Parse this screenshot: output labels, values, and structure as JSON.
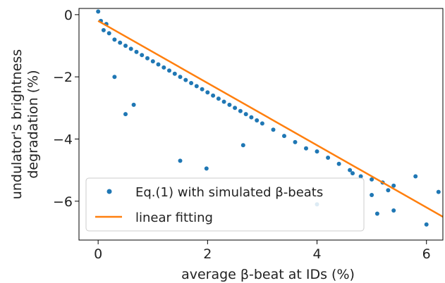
{
  "chart_data": {
    "type": "scatter",
    "xlabel": "average β-beat at IDs (%)",
    "ylabel": [
      "undulator's brightness",
      "degradation (%)"
    ],
    "xlim": [
      -0.35,
      6.3
    ],
    "ylim": [
      -7.25,
      0.2
    ],
    "x_ticks": [
      "0",
      "2",
      "4",
      "6"
    ],
    "y_ticks": [
      "0",
      "−2",
      "−4",
      "−6"
    ],
    "x_tick_values": [
      0,
      2,
      4,
      6
    ],
    "y_tick_values": [
      0,
      -2,
      -4,
      -6
    ],
    "grid": false,
    "legend_position": "lower-left",
    "series": [
      {
        "name": "Eq.(1) with simulated β-beats",
        "kind": "scatter",
        "color": "#1f77b4",
        "x": [
          0.0,
          0.05,
          0.1,
          0.15,
          0.2,
          0.3,
          0.4,
          0.5,
          0.6,
          0.7,
          0.8,
          0.9,
          1.0,
          1.1,
          1.2,
          1.3,
          1.4,
          1.5,
          1.6,
          1.7,
          1.8,
          1.9,
          2.0,
          2.1,
          2.2,
          2.3,
          2.4,
          2.5,
          2.6,
          2.7,
          2.8,
          2.9,
          3.0,
          3.2,
          3.4,
          3.6,
          3.8,
          4.0,
          4.2,
          4.4,
          4.6,
          4.8,
          5.0,
          5.2,
          5.4,
          0.3,
          0.65,
          0.5,
          1.5,
          1.98,
          2.65,
          4.0,
          4.65,
          5.0,
          5.1,
          5.4,
          5.8,
          6.0,
          6.22,
          5.3
        ],
        "y": [
          0.1,
          -0.2,
          -0.5,
          -0.3,
          -0.6,
          -0.8,
          -0.9,
          -1.0,
          -1.1,
          -1.2,
          -1.3,
          -1.4,
          -1.5,
          -1.6,
          -1.7,
          -1.8,
          -1.9,
          -2.0,
          -2.1,
          -2.2,
          -2.3,
          -2.4,
          -2.5,
          -2.6,
          -2.7,
          -2.8,
          -2.9,
          -3.0,
          -3.1,
          -3.2,
          -3.3,
          -3.4,
          -3.5,
          -3.7,
          -3.9,
          -4.1,
          -4.3,
          -4.4,
          -4.6,
          -4.8,
          -5.0,
          -5.2,
          -5.3,
          -5.4,
          -5.5,
          -2.0,
          -2.9,
          -3.2,
          -4.7,
          -4.95,
          -4.2,
          -6.1,
          -5.1,
          -5.8,
          -6.4,
          -6.3,
          -5.2,
          -6.75,
          -5.7,
          -5.65
        ]
      },
      {
        "name": "linear fitting",
        "kind": "line",
        "color": "#ff7f0e",
        "x": [
          0.0,
          6.3
        ],
        "y": [
          -0.2,
          -6.5
        ]
      }
    ]
  }
}
